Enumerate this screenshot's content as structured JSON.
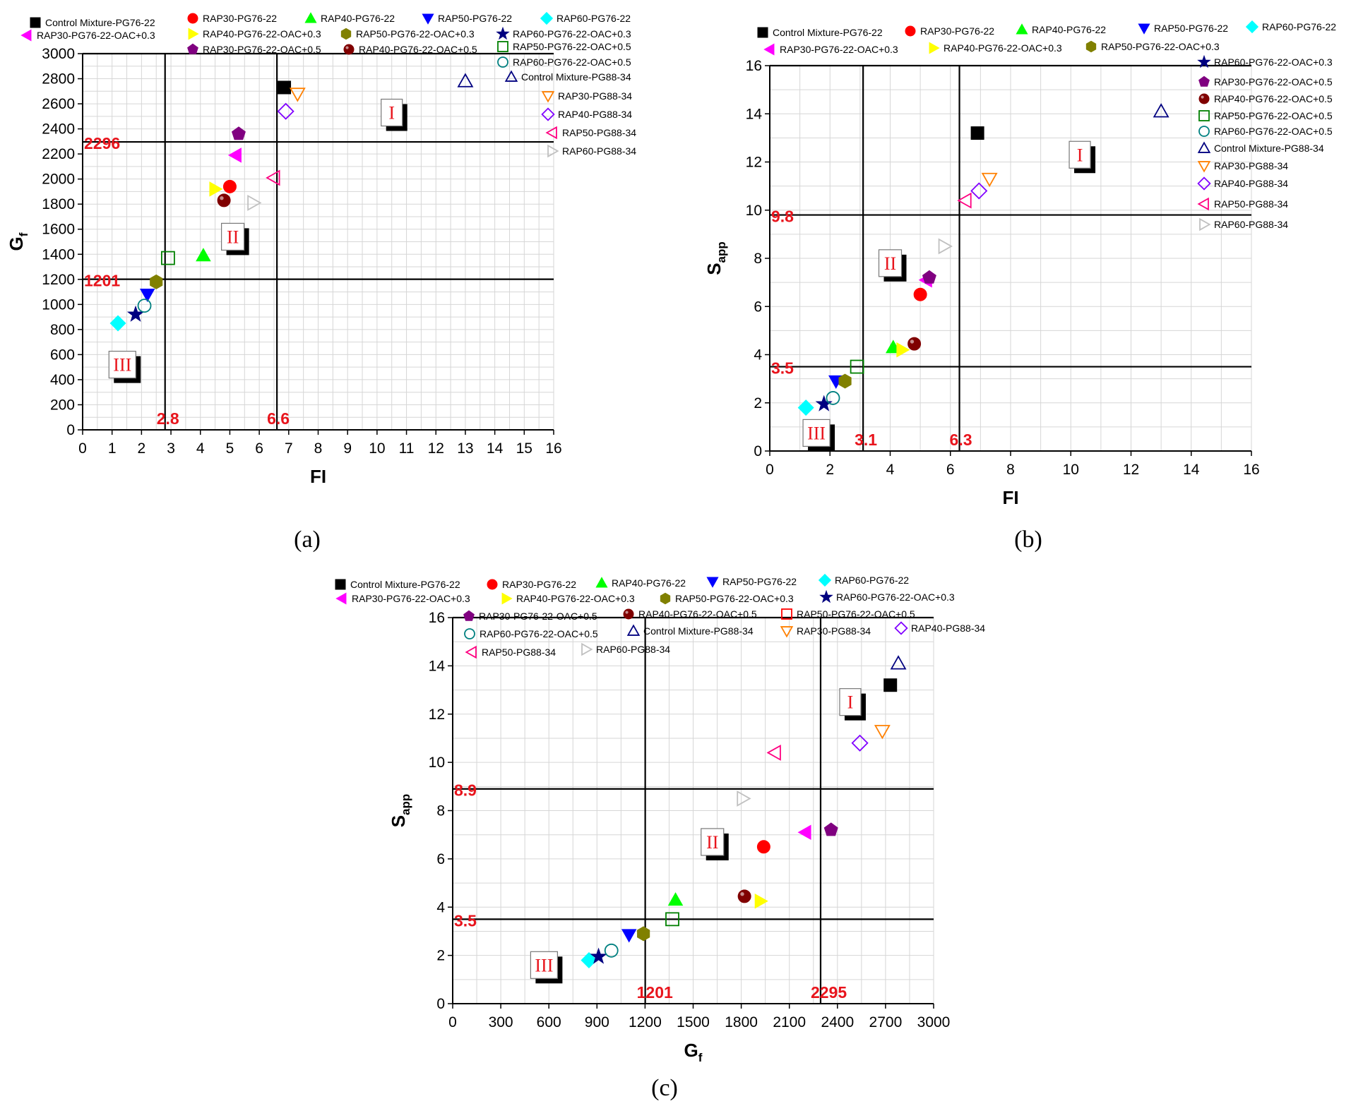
{
  "chart_data": [
    {
      "type": "scatter",
      "panel_label": "(a)",
      "xlabel": "FI",
      "ylabel": "G",
      "ylabel_sub": "f",
      "xlim": [
        0,
        16
      ],
      "ylim": [
        0,
        3000
      ],
      "x_ticks": [
        0,
        1,
        2,
        3,
        4,
        5,
        6,
        7,
        8,
        9,
        10,
        11,
        12,
        13,
        14,
        15,
        16
      ],
      "y_ticks": [
        0,
        200,
        400,
        600,
        800,
        1000,
        1200,
        1400,
        1600,
        1800,
        2000,
        2200,
        2400,
        2600,
        2800,
        3000
      ],
      "grid": true,
      "thresholds": {
        "x": [
          2.8,
          6.6
        ],
        "y": [
          1201,
          2296
        ]
      },
      "threshold_labels": {
        "x": [
          "2.8",
          "6.6"
        ],
        "y": [
          "1201",
          "2296"
        ]
      },
      "region_labels": [
        {
          "text": "I",
          "x": 10.5,
          "y": 2530
        },
        {
          "text": "II",
          "x": 5.1,
          "y": 1540
        },
        {
          "text": "III",
          "x": 1.35,
          "y": 520
        }
      ],
      "points": [
        {
          "series": "Control Mixture-PG76-22",
          "x": 6.85,
          "y": 2730
        },
        {
          "series": "RAP30-PG76-22",
          "x": 5.0,
          "y": 1940
        },
        {
          "series": "RAP40-PG76-22",
          "x": 4.1,
          "y": 1390
        },
        {
          "series": "RAP50-PG76-22",
          "x": 2.2,
          "y": 1080
        },
        {
          "series": "RAP60-PG76-22",
          "x": 1.2,
          "y": 850
        },
        {
          "series": "RAP30-PG76-22-OAC+0.3",
          "x": 5.2,
          "y": 2190
        },
        {
          "series": "RAP40-PG76-22-OAC+0.3",
          "x": 4.5,
          "y": 1920
        },
        {
          "series": "RAP50-PG76-22-OAC+0.3",
          "x": 2.5,
          "y": 1180
        },
        {
          "series": "RAP60-PG76-22-OAC+0.3",
          "x": 1.8,
          "y": 920
        },
        {
          "series": "RAP30-PG76-22-OAC+0.5",
          "x": 5.3,
          "y": 2360
        },
        {
          "series": "RAP40-PG76-22-OAC+0.5",
          "x": 4.8,
          "y": 1830
        },
        {
          "series": "RAP50-PG76-22-OAC+0.5",
          "x": 2.9,
          "y": 1370
        },
        {
          "series": "RAP60-PG76-22-OAC+0.5",
          "x": 2.1,
          "y": 990
        },
        {
          "series": "Control Mixture-PG88-34",
          "x": 13.0,
          "y": 2780
        },
        {
          "series": "RAP30-PG88-34",
          "x": 7.3,
          "y": 2680
        },
        {
          "series": "RAP40-PG88-34",
          "x": 6.9,
          "y": 2540
        },
        {
          "series": "RAP50-PG88-34",
          "x": 6.5,
          "y": 2010
        },
        {
          "series": "RAP60-PG88-34",
          "x": 5.8,
          "y": 1810
        }
      ]
    },
    {
      "type": "scatter",
      "panel_label": "(b)",
      "xlabel": "FI",
      "ylabel": "S",
      "ylabel_sub": "app",
      "xlim": [
        0,
        16
      ],
      "ylim": [
        0,
        16
      ],
      "x_ticks": [
        0,
        2,
        4,
        6,
        8,
        10,
        12,
        14,
        16
      ],
      "y_ticks": [
        0,
        2,
        4,
        6,
        8,
        10,
        12,
        14,
        16
      ],
      "grid": true,
      "thresholds": {
        "x": [
          3.1,
          6.3
        ],
        "y": [
          3.5,
          9.8
        ]
      },
      "threshold_labels": {
        "x": [
          "3.1",
          "6.3"
        ],
        "y": [
          "3.5",
          "9.8"
        ]
      },
      "region_labels": [
        {
          "text": "I",
          "x": 10.3,
          "y": 12.3
        },
        {
          "text": "II",
          "x": 4.0,
          "y": 7.8
        },
        {
          "text": "III",
          "x": 1.55,
          "y": 0.75
        }
      ],
      "points": [
        {
          "series": "Control Mixture-PG76-22",
          "x": 6.9,
          "y": 13.2
        },
        {
          "series": "RAP30-PG76-22",
          "x": 5.0,
          "y": 6.5
        },
        {
          "series": "RAP40-PG76-22",
          "x": 4.1,
          "y": 4.3
        },
        {
          "series": "RAP50-PG76-22",
          "x": 2.2,
          "y": 2.9
        },
        {
          "series": "RAP60-PG76-22",
          "x": 1.2,
          "y": 1.8
        },
        {
          "series": "RAP30-PG76-22-OAC+0.3",
          "x": 5.2,
          "y": 7.1
        },
        {
          "series": "RAP40-PG76-22-OAC+0.3",
          "x": 4.4,
          "y": 4.2
        },
        {
          "series": "RAP50-PG76-22-OAC+0.3",
          "x": 2.5,
          "y": 2.9
        },
        {
          "series": "RAP60-PG76-22-OAC+0.3",
          "x": 1.8,
          "y": 1.95
        },
        {
          "series": "RAP30-PG76-22-OAC+0.5",
          "x": 5.3,
          "y": 7.2
        },
        {
          "series": "RAP40-PG76-22-OAC+0.5",
          "x": 4.8,
          "y": 4.45
        },
        {
          "series": "RAP50-PG76-22-OAC+0.5",
          "x": 2.9,
          "y": 3.5
        },
        {
          "series": "RAP60-PG76-22-OAC+0.5",
          "x": 2.1,
          "y": 2.2
        },
        {
          "series": "Control Mixture-PG88-34",
          "x": 13.0,
          "y": 14.1
        },
        {
          "series": "RAP30-PG88-34",
          "x": 7.3,
          "y": 11.3
        },
        {
          "series": "RAP40-PG88-34",
          "x": 6.95,
          "y": 10.8
        },
        {
          "series": "RAP50-PG88-34",
          "x": 6.5,
          "y": 10.4
        },
        {
          "series": "RAP60-PG88-34",
          "x": 5.8,
          "y": 8.5
        }
      ]
    },
    {
      "type": "scatter",
      "panel_label": "(c)",
      "xlabel": "G",
      "xlabel_sub": "f",
      "ylabel": "S",
      "ylabel_sub": "app",
      "xlim": [
        0,
        3000
      ],
      "ylim": [
        0,
        16
      ],
      "x_ticks": [
        0,
        300,
        600,
        900,
        1200,
        1500,
        1800,
        2100,
        2400,
        2700,
        3000
      ],
      "y_ticks": [
        0,
        2,
        4,
        6,
        8,
        10,
        12,
        14,
        16
      ],
      "grid": true,
      "thresholds": {
        "x": [
          1201,
          2295
        ],
        "y": [
          3.5,
          8.9
        ]
      },
      "threshold_labels": {
        "x": [
          "1201",
          "2295"
        ],
        "y": [
          "3.5",
          "8.9"
        ]
      },
      "region_labels": [
        {
          "text": "I",
          "x": 2480,
          "y": 12.5
        },
        {
          "text": "II",
          "x": 1620,
          "y": 6.7
        },
        {
          "text": "III",
          "x": 570,
          "y": 1.6
        }
      ],
      "points": [
        {
          "series": "Control Mixture-PG76-22",
          "x": 2730,
          "y": 13.2
        },
        {
          "series": "RAP30-PG76-22",
          "x": 1940,
          "y": 6.5
        },
        {
          "series": "RAP40-PG76-22",
          "x": 1390,
          "y": 4.3
        },
        {
          "series": "RAP50-PG76-22",
          "x": 1100,
          "y": 2.85
        },
        {
          "series": "RAP60-PG76-22",
          "x": 850,
          "y": 1.8
        },
        {
          "series": "RAP30-PG76-22-OAC+0.3",
          "x": 2200,
          "y": 7.1
        },
        {
          "series": "RAP40-PG76-22-OAC+0.3",
          "x": 1920,
          "y": 4.25
        },
        {
          "series": "RAP50-PG76-22-OAC+0.3",
          "x": 1190,
          "y": 2.9
        },
        {
          "series": "RAP60-PG76-22-OAC+0.3",
          "x": 910,
          "y": 1.95
        },
        {
          "series": "RAP30-PG76-22-OAC+0.5",
          "x": 2360,
          "y": 7.2
        },
        {
          "series": "RAP40-PG76-22-OAC+0.5",
          "x": 1820,
          "y": 4.45
        },
        {
          "series": "RAP50-PG76-22-OAC+0.5",
          "x": 1370,
          "y": 3.5
        },
        {
          "series": "RAP60-PG76-22-OAC+0.5",
          "x": 990,
          "y": 2.2
        },
        {
          "series": "Control Mixture-PG88-34",
          "x": 2780,
          "y": 14.1
        },
        {
          "series": "RAP30-PG88-34",
          "x": 2680,
          "y": 11.3
        },
        {
          "series": "RAP40-PG88-34",
          "x": 2540,
          "y": 10.8
        },
        {
          "series": "RAP50-PG88-34",
          "x": 2010,
          "y": 10.4
        },
        {
          "series": "RAP60-PG88-34",
          "x": 1810,
          "y": 8.5
        }
      ]
    }
  ],
  "series_styles": [
    {
      "name": "Control Mixture-PG76-22",
      "marker": "square",
      "fill": "#000000",
      "stroke": "#000000"
    },
    {
      "name": "RAP30-PG76-22",
      "marker": "circle",
      "fill": "#ff0000",
      "stroke": "#ff0000"
    },
    {
      "name": "RAP40-PG76-22",
      "marker": "triangle-up",
      "fill": "#00ff00",
      "stroke": "#00ff00"
    },
    {
      "name": "RAP50-PG76-22",
      "marker": "triangle-down",
      "fill": "#0000ff",
      "stroke": "#0000ff"
    },
    {
      "name": "RAP60-PG76-22",
      "marker": "diamond",
      "fill": "#00ffff",
      "stroke": "#00ffff"
    },
    {
      "name": "RAP30-PG76-22-OAC+0.3",
      "marker": "triangle-left",
      "fill": "#ff00ff",
      "stroke": "#ff00ff"
    },
    {
      "name": "RAP40-PG76-22-OAC+0.3",
      "marker": "triangle-right",
      "fill": "#ffff00",
      "stroke": "#ffff00"
    },
    {
      "name": "RAP50-PG76-22-OAC+0.3",
      "marker": "hexagon",
      "fill": "#808000",
      "stroke": "#808000"
    },
    {
      "name": "RAP60-PG76-22-OAC+0.3",
      "marker": "star",
      "fill": "#000080",
      "stroke": "#000080"
    },
    {
      "name": "RAP30-PG76-22-OAC+0.5",
      "marker": "pentagon",
      "fill": "#800080",
      "stroke": "#800080"
    },
    {
      "name": "RAP40-PG76-22-OAC+0.5",
      "marker": "sphere",
      "fill": "#800000",
      "stroke": "#800000"
    },
    {
      "name": "RAP50-PG76-22-OAC+0.5",
      "marker": "square-open",
      "fill": "none",
      "stroke": "#008000"
    },
    {
      "name": "RAP60-PG76-22-OAC+0.5",
      "marker": "circle-open",
      "fill": "none",
      "stroke": "#008080"
    },
    {
      "name": "Control Mixture-PG88-34",
      "marker": "triangle-up-open",
      "fill": "none",
      "stroke": "#000080"
    },
    {
      "name": "RAP30-PG88-34",
      "marker": "triangle-down-open",
      "fill": "none",
      "stroke": "#ff8000"
    },
    {
      "name": "RAP40-PG88-34",
      "marker": "diamond-open",
      "fill": "none",
      "stroke": "#8000ff"
    },
    {
      "name": "RAP50-PG88-34",
      "marker": "triangle-left-open",
      "fill": "none",
      "stroke": "#ff0080"
    },
    {
      "name": "RAP60-PG88-34",
      "marker": "triangle-right-open",
      "fill": "none",
      "stroke": "#c0c0c0"
    }
  ],
  "panel_c_legend_labels": [
    "Control Mixture-PG76-22",
    "RAP30-PG76-22",
    "RAP40-PG76-22",
    "RAP50-PG76-22",
    "RAP60-PG76-22",
    "RAP30-PG76-22-OAC+0.3",
    "RAP40-PG76-22-OAC+0.3",
    "RAP50-PG76-22-OAC+0.3",
    "RAP60-PG76-22-OAC+0.3",
    "RAP30-PG76-22-OAC+0.5",
    "RAP40-PG76-22-OAC+0.5",
    "RAP50-PG76-22-OAC+0.5",
    "RAP60-PG76-22-OAC+0.5",
    "Control Mixture-PG88-34",
    "RAP30-PG88-34",
    "RAP40-PG88-34",
    "RAP50-PG88-34",
    "RAP60-PG88-34"
  ],
  "panel_c_legend_colors": {
    "RAP50-PG76-22-OAC+0.5": "#ff0000"
  }
}
